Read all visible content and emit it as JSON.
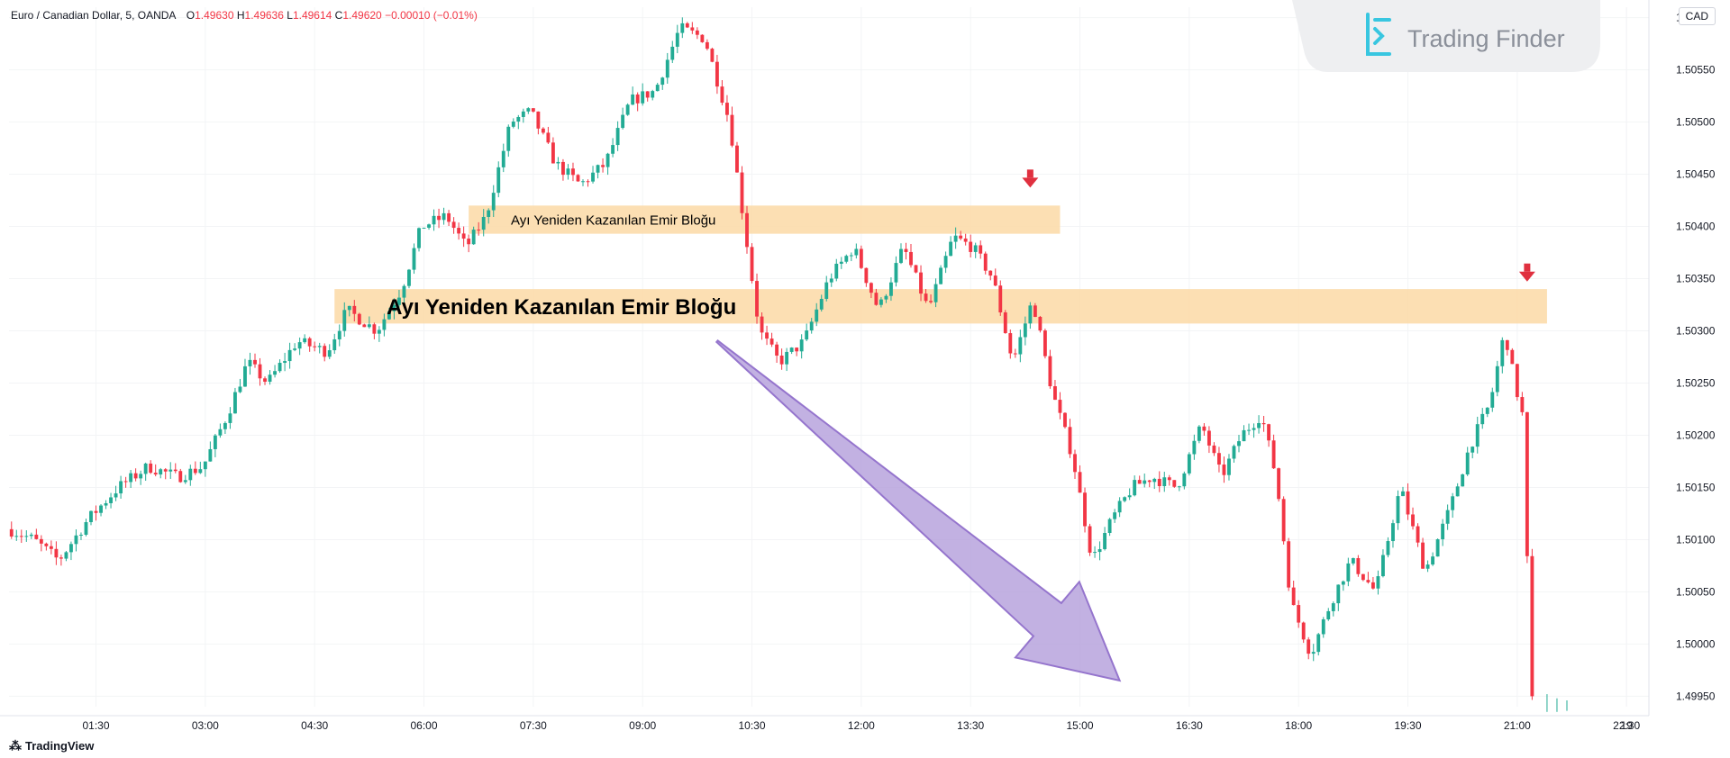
{
  "header": {
    "symbol": "Euro / Canadian Dollar, 5, OANDA",
    "open_label": "O",
    "open": "1.49630",
    "high_label": "H",
    "high": "1.49636",
    "low_label": "L",
    "low": "1.49614",
    "close_label": "C",
    "close": "1.49620",
    "change": "−0.00010 (−0.01%)"
  },
  "currency_button": "CAD",
  "brand": {
    "name": "Trading Finder"
  },
  "footer": {
    "brand": "TradingView"
  },
  "colors": {
    "up": "#22ab94",
    "down": "#f23645",
    "zone": "#fcd9a6",
    "arrow": "#b39ddb",
    "marker": "#e0303f"
  },
  "chart_data": {
    "type": "candlestick",
    "ylim": [
      1.4994,
      1.5061
    ],
    "y_ticks": [
      "1.50600",
      "1.50550",
      "1.50500",
      "1.50450",
      "1.50400",
      "1.50350",
      "1.50300",
      "1.50250",
      "1.50200",
      "1.50150",
      "1.50100",
      "1.50050",
      "1.50000",
      "1.49950"
    ],
    "x_ticks": [
      "01:30",
      "03:00",
      "04:30",
      "06:00",
      "07:30",
      "09:00",
      "10:30",
      "12:00",
      "13:30",
      "15:00",
      "16:30",
      "18:00",
      "19:30",
      "21:00",
      "22:30",
      "19"
    ],
    "price_path": [
      {
        "bar": 0,
        "price": 1.5011
      },
      {
        "bar": 5,
        "price": 1.501
      },
      {
        "bar": 10,
        "price": 1.5008
      },
      {
        "bar": 16,
        "price": 1.5012
      },
      {
        "bar": 22,
        "price": 1.5015
      },
      {
        "bar": 28,
        "price": 1.5017
      },
      {
        "bar": 34,
        "price": 1.5016
      },
      {
        "bar": 39,
        "price": 1.5017
      },
      {
        "bar": 44,
        "price": 1.5022
      },
      {
        "bar": 48,
        "price": 1.5027
      },
      {
        "bar": 52,
        "price": 1.5025
      },
      {
        "bar": 58,
        "price": 1.5029
      },
      {
        "bar": 64,
        "price": 1.5028
      },
      {
        "bar": 68,
        "price": 1.5032
      },
      {
        "bar": 74,
        "price": 1.503
      },
      {
        "bar": 79,
        "price": 1.5034
      },
      {
        "bar": 83,
        "price": 1.504
      },
      {
        "bar": 88,
        "price": 1.5041
      },
      {
        "bar": 92,
        "price": 1.5038
      },
      {
        "bar": 96,
        "price": 1.5041
      },
      {
        "bar": 101,
        "price": 1.505
      },
      {
        "bar": 105,
        "price": 1.5051
      },
      {
        "bar": 110,
        "price": 1.5046
      },
      {
        "bar": 115,
        "price": 1.5044
      },
      {
        "bar": 120,
        "price": 1.5046
      },
      {
        "bar": 125,
        "price": 1.5052
      },
      {
        "bar": 130,
        "price": 1.5053
      },
      {
        "bar": 135,
        "price": 1.5059
      },
      {
        "bar": 140,
        "price": 1.5058
      },
      {
        "bar": 145,
        "price": 1.505
      },
      {
        "bar": 148,
        "price": 1.504
      },
      {
        "bar": 151,
        "price": 1.503
      },
      {
        "bar": 155,
        "price": 1.5027
      },
      {
        "bar": 160,
        "price": 1.5029
      },
      {
        "bar": 165,
        "price": 1.5035
      },
      {
        "bar": 170,
        "price": 1.5038
      },
      {
        "bar": 175,
        "price": 1.5032
      },
      {
        "bar": 180,
        "price": 1.5038
      },
      {
        "bar": 185,
        "price": 1.5032
      },
      {
        "bar": 190,
        "price": 1.5039
      },
      {
        "bar": 194,
        "price": 1.5038
      },
      {
        "bar": 198,
        "price": 1.5035
      },
      {
        "bar": 202,
        "price": 1.5027
      },
      {
        "bar": 206,
        "price": 1.5033
      },
      {
        "bar": 210,
        "price": 1.5024
      },
      {
        "bar": 214,
        "price": 1.5018
      },
      {
        "bar": 218,
        "price": 1.5008
      },
      {
        "bar": 222,
        "price": 1.5012
      },
      {
        "bar": 226,
        "price": 1.5015
      },
      {
        "bar": 230,
        "price": 1.5016
      },
      {
        "bar": 235,
        "price": 1.5015
      },
      {
        "bar": 240,
        "price": 1.5021
      },
      {
        "bar": 244,
        "price": 1.5016
      },
      {
        "bar": 248,
        "price": 1.502
      },
      {
        "bar": 252,
        "price": 1.5022
      },
      {
        "bar": 255,
        "price": 1.5016
      },
      {
        "bar": 258,
        "price": 1.5004
      },
      {
        "bar": 262,
        "price": 1.4999
      },
      {
        "bar": 266,
        "price": 1.5004
      },
      {
        "bar": 270,
        "price": 1.5008
      },
      {
        "bar": 275,
        "price": 1.5005
      },
      {
        "bar": 280,
        "price": 1.5015
      },
      {
        "bar": 285,
        "price": 1.5007
      },
      {
        "bar": 290,
        "price": 1.5013
      },
      {
        "bar": 294,
        "price": 1.5019
      },
      {
        "bar": 298,
        "price": 1.5023
      },
      {
        "bar": 301,
        "price": 1.503
      },
      {
        "bar": 303,
        "price": 1.5025
      },
      {
        "bar": 305,
        "price": 1.5021
      },
      {
        "bar": 306,
        "price": 1.4995
      }
    ],
    "zones": [
      {
        "label": "Ayı Yeniden Kazanılan Emir Bloğu",
        "top": 1.5042,
        "bottom": 1.50393,
        "start_bar": 92,
        "end_bar": 211,
        "size": "small"
      },
      {
        "label": "Ayı Yeniden Kazanılan Emir Bloğu",
        "top": 1.5034,
        "bottom": 1.50307,
        "start_bar": 65,
        "end_bar": 309,
        "size": "large"
      }
    ],
    "markers": [
      {
        "bar": 205,
        "price": 1.50445,
        "type": "down-arrow"
      },
      {
        "bar": 305,
        "price": 1.50355,
        "type": "down-arrow"
      }
    ],
    "annotation_arrow": {
      "from_bar": 142,
      "from_price": 1.5029,
      "to_bar": 223,
      "to_price": 1.49965,
      "direction": "down"
    }
  }
}
